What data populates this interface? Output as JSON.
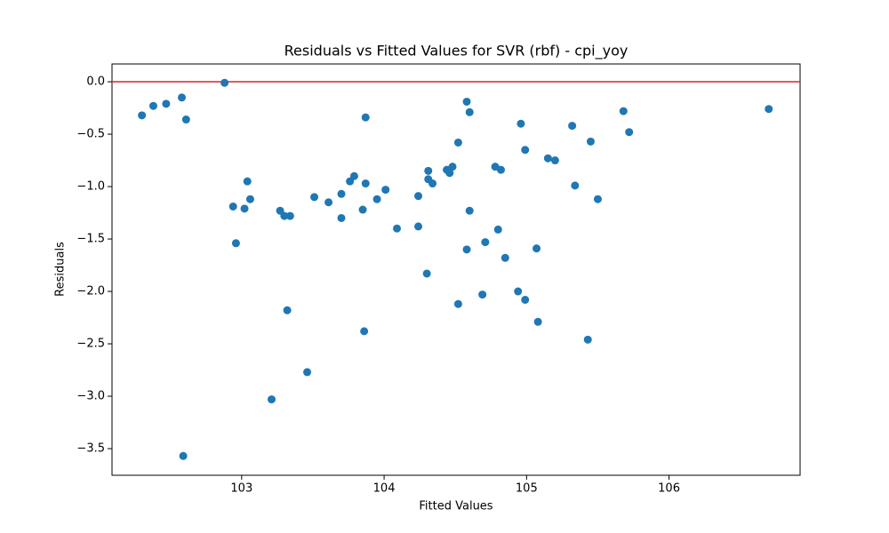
{
  "chart_data": {
    "type": "scatter",
    "title": "Residuals vs Fitted Values for SVR (rbf) - cpi_yoy",
    "x_label": "Fitted Values",
    "y_label": "Residuals",
    "color": "#1f77b4",
    "hlines": [
      {
        "y": 0,
        "color": "#d62728"
      }
    ],
    "xlim": [
      102.09,
      106.92
    ],
    "ylim": [
      -3.754,
      0.17
    ],
    "xticks": [
      103,
      104,
      105,
      106
    ],
    "yticks": [
      {
        "value": -3.5,
        "label": "−3.5"
      },
      {
        "value": -3.0,
        "label": "−3.0"
      },
      {
        "value": -2.5,
        "label": "−2.5"
      },
      {
        "value": -2.0,
        "label": "−2.0"
      },
      {
        "value": -1.5,
        "label": "−1.5"
      },
      {
        "value": -1.0,
        "label": "−1.0"
      },
      {
        "value": -0.5,
        "label": "−0.5"
      },
      {
        "value": 0,
        "label": "0.0"
      }
    ],
    "x": [
      102.3,
      102.38,
      102.47,
      102.58,
      102.61,
      102.88,
      102.59,
      102.94,
      102.96,
      103.04,
      103.02,
      103.06,
      103.21,
      103.27,
      103.3,
      103.34,
      103.32,
      103.46,
      103.51,
      103.61,
      103.7,
      103.7,
      103.76,
      103.79,
      103.85,
      103.87,
      103.86,
      103.87,
      103.95,
      104.01,
      104.09,
      104.24,
      104.24,
      104.3,
      104.31,
      104.31,
      104.34,
      104.44,
      104.46,
      104.48,
      104.52,
      104.52,
      104.58,
      104.6,
      104.58,
      104.6,
      104.69,
      104.71,
      104.78,
      104.8,
      104.82,
      104.85,
      104.94,
      104.96,
      104.99,
      104.99,
      105.07,
      105.08,
      105.15,
      105.2,
      105.32,
      105.34,
      105.43,
      105.45,
      105.5,
      105.68,
      105.72,
      106.7
    ],
    "values": [
      -0.32,
      -0.23,
      -0.21,
      -0.15,
      -0.36,
      -0.01,
      -3.57,
      -1.19,
      -1.54,
      -0.95,
      -1.21,
      -1.12,
      -3.03,
      -1.23,
      -1.28,
      -1.28,
      -2.18,
      -2.77,
      -1.1,
      -1.15,
      -1.07,
      -1.3,
      -0.95,
      -0.9,
      -1.22,
      -0.97,
      -2.38,
      -0.34,
      -1.12,
      -1.03,
      -1.4,
      -1.09,
      -1.38,
      -1.83,
      -0.85,
      -0.93,
      -0.97,
      -0.84,
      -0.87,
      -0.81,
      -2.12,
      -0.58,
      -0.19,
      -0.29,
      -1.6,
      -1.23,
      -2.03,
      -1.53,
      -0.81,
      -1.41,
      -0.84,
      -1.68,
      -2.0,
      -0.4,
      -0.65,
      -2.08,
      -1.59,
      -2.29,
      -0.73,
      -0.75,
      -0.42,
      -0.99,
      -2.46,
      -0.57,
      -1.12,
      -0.28,
      -0.48,
      -0.26
    ]
  }
}
